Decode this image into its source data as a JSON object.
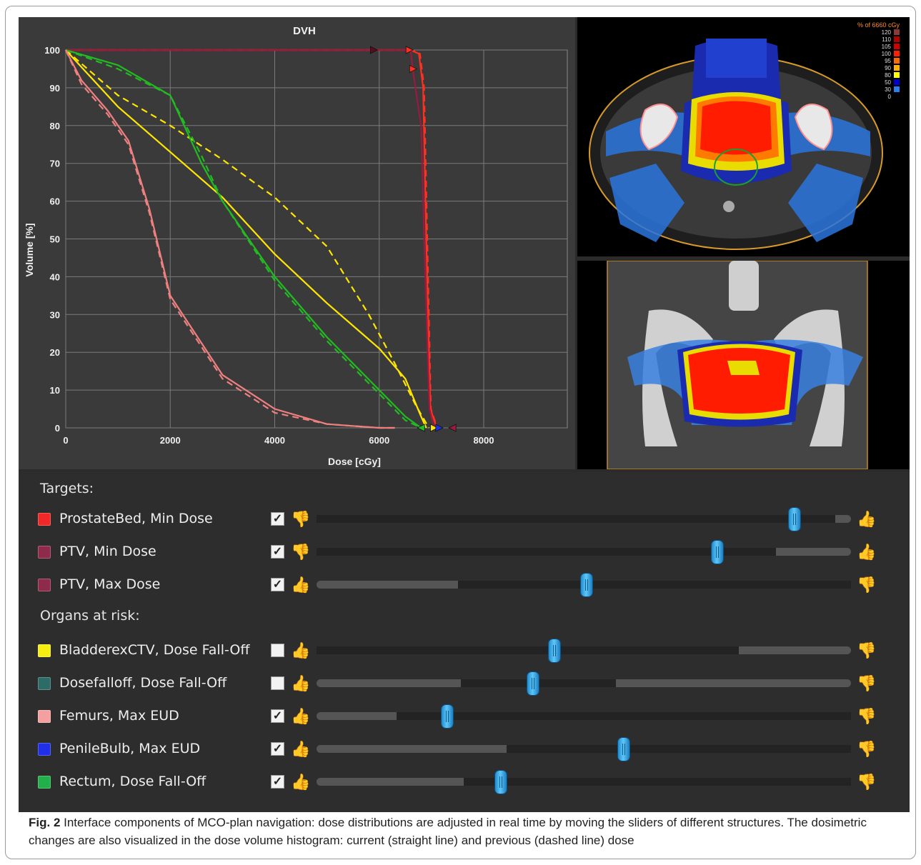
{
  "dvh": {
    "title": "DVH",
    "xlabel": "Dose [cGy]",
    "ylabel": "Volume [%]",
    "x_ticks": [
      "0",
      "2000",
      "4000",
      "6000",
      "8000"
    ],
    "y_ticks": [
      "0",
      "10",
      "20",
      "30",
      "40",
      "50",
      "60",
      "70",
      "80",
      "90",
      "100"
    ]
  },
  "chart_data": {
    "type": "line",
    "title": "DVH",
    "xlabel": "Dose [cGy]",
    "ylabel": "Volume [%]",
    "xlim": [
      0,
      9600
    ],
    "ylim": [
      0,
      100
    ],
    "grid": true,
    "series": [
      {
        "color": "#ff3020",
        "style": "solid",
        "x": [
          0,
          6600,
          6760,
          6840,
          6900,
          6980,
          7100
        ],
        "y": [
          100,
          100,
          99,
          90,
          50,
          5,
          0
        ]
      },
      {
        "color": "#ff3020",
        "style": "dashed",
        "x": [
          0,
          6620,
          6780,
          6860,
          6920,
          6990,
          7110
        ],
        "y": [
          100,
          100,
          99,
          90,
          50,
          5,
          0
        ]
      },
      {
        "color": "#9a1a40",
        "style": "solid",
        "x": [
          0,
          6600,
          6650,
          6800,
          6880,
          6960,
          7050
        ],
        "y": [
          100,
          100,
          94,
          80,
          40,
          5,
          0
        ]
      },
      {
        "color": "#ffe600",
        "style": "solid",
        "x": [
          0,
          1000,
          2000,
          3000,
          4000,
          5000,
          6000,
          6500,
          6800,
          6900
        ],
        "y": [
          100,
          85,
          73,
          61,
          46,
          33,
          21,
          13,
          3,
          0
        ]
      },
      {
        "color": "#ffe600",
        "style": "dashed",
        "x": [
          0,
          1000,
          2000,
          3000,
          4000,
          5000,
          5800,
          6300,
          6700,
          6950
        ],
        "y": [
          100,
          88,
          80,
          71,
          61,
          48,
          30,
          17,
          6,
          0
        ]
      },
      {
        "color": "#22bb22",
        "style": "solid",
        "x": [
          0,
          1000,
          2000,
          2600,
          3000,
          4000,
          5000,
          6000,
          6500,
          6800
        ],
        "y": [
          100,
          96,
          88,
          70,
          60,
          40,
          24,
          10,
          3,
          0
        ]
      },
      {
        "color": "#22bb22",
        "style": "dashed",
        "x": [
          0,
          1000,
          2000,
          2600,
          3000,
          4000,
          5000,
          6000,
          6500,
          6800
        ],
        "y": [
          100,
          95,
          88,
          72,
          60,
          39,
          23,
          9,
          2,
          0
        ]
      },
      {
        "color": "#f08080",
        "style": "solid",
        "x": [
          0,
          300,
          800,
          1200,
          1600,
          2000,
          3000,
          4000,
          5000,
          6000,
          6300
        ],
        "y": [
          100,
          92,
          84,
          76,
          58,
          35,
          14,
          5,
          1,
          0,
          0
        ]
      },
      {
        "color": "#f08080",
        "style": "dashed",
        "x": [
          0,
          300,
          800,
          1200,
          1600,
          2000,
          3000,
          4000,
          5000,
          6000,
          6300
        ],
        "y": [
          100,
          91,
          83,
          75,
          57,
          34,
          13,
          4,
          1,
          0,
          0
        ]
      }
    ]
  },
  "colorbar": {
    "title": "% of 6660 cGy",
    "levels": [
      "120",
      "110",
      "105",
      "100",
      "95",
      "90",
      "80",
      "50",
      "30",
      "0"
    ],
    "colors": [
      "#8b3a3a",
      "#b00000",
      "#d00000",
      "#ff2000",
      "#ff6a00",
      "#ffb000",
      "#ffff00",
      "#0000d0",
      "#2a7ff0",
      "#000000"
    ]
  },
  "panel": {
    "targets_label": "Targets:",
    "oar_label": "Organs at risk:",
    "targets": [
      {
        "label": "ProstateBed, Min Dose",
        "color": "#f02828",
        "checked": true,
        "thumb_left": "down",
        "thumb_right": "up",
        "value": 0.895,
        "range": [
          0.0,
          0.97
        ]
      },
      {
        "label": "PTV, Min Dose",
        "color": "#8e2a4a",
        "checked": true,
        "thumb_left": "down",
        "thumb_right": "up",
        "value": 0.75,
        "range": [
          0.0,
          0.86
        ]
      },
      {
        "label": "PTV, Max Dose",
        "color": "#8e2a4a",
        "checked": true,
        "thumb_left": "up",
        "thumb_right": "down",
        "value": 0.505,
        "range": [
          0.265,
          1.0
        ]
      }
    ],
    "organs": [
      {
        "label": "BladderexCTV, Dose Fall-Off",
        "color": "#f5ee10",
        "checked": false,
        "thumb_left": "up",
        "thumb_right": "down",
        "value": 0.445,
        "range": [
          0.0,
          0.79
        ]
      },
      {
        "label": "Dosefalloff, Dose Fall-Off",
        "color": "#2d6b66",
        "checked": false,
        "thumb_left": "up",
        "thumb_right": "down",
        "value": 0.405,
        "range": [
          0.27,
          0.56
        ]
      },
      {
        "label": "Femurs, Max EUD",
        "color": "#f4a0a0",
        "checked": true,
        "thumb_left": "up",
        "thumb_right": "down",
        "value": 0.245,
        "range": [
          0.15,
          1.0
        ]
      },
      {
        "label": "PenileBulb, Max EUD",
        "color": "#2030e8",
        "checked": true,
        "thumb_left": "up",
        "thumb_right": "down",
        "value": 0.575,
        "range": [
          0.355,
          1.0
        ]
      },
      {
        "label": "Rectum, Dose Fall-Off",
        "color": "#22b04a",
        "checked": true,
        "thumb_left": "up",
        "thumb_right": "down",
        "value": 0.345,
        "range": [
          0.275,
          1.0
        ]
      }
    ]
  },
  "caption": {
    "label": "Fig. 2",
    "text": " Interface components of MCO-plan navigation: dose distributions are adjusted in real time by moving the sliders of different structures. The dosimetric changes are also visualized in the dose volume histogram: current (straight line) and previous (dashed line) dose"
  }
}
